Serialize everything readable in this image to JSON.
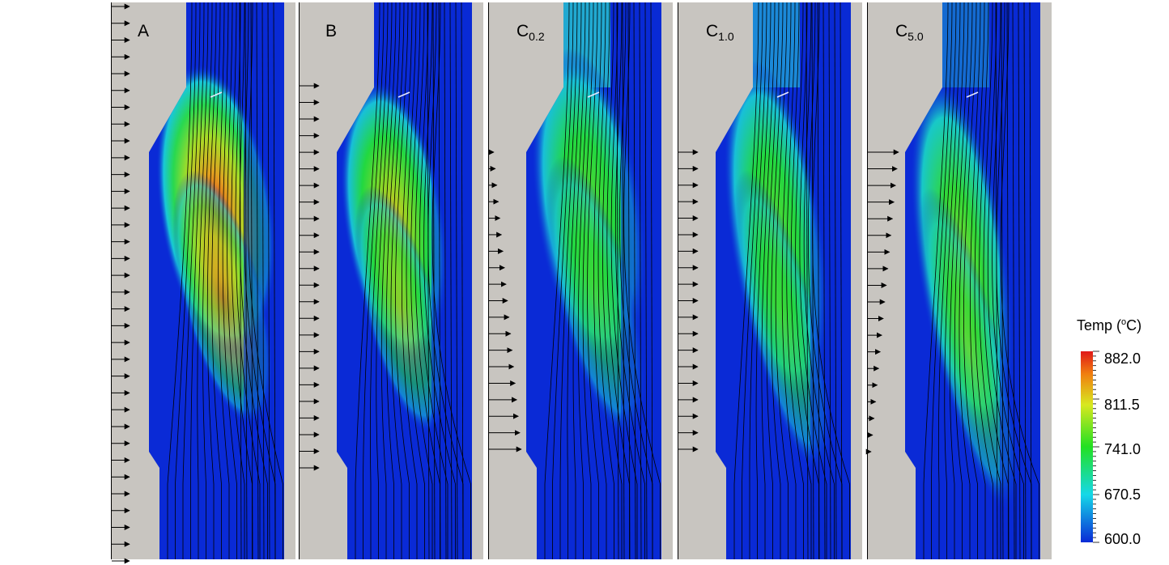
{
  "panels": [
    {
      "name": "A",
      "label": "A",
      "sub": ""
    },
    {
      "name": "B",
      "label": "B",
      "sub": ""
    },
    {
      "name": "C02",
      "label": "C",
      "sub": "0.2"
    },
    {
      "name": "C10",
      "label": "C",
      "sub": "1.0"
    },
    {
      "name": "C50",
      "label": "C",
      "sub": "5.0"
    }
  ],
  "colorbar": {
    "title_prefix": "Temp (",
    "title_sup": "o",
    "title_suffix": "C)",
    "ticks": [
      "882.0",
      "811.5",
      "741.0",
      "670.5",
      "600.0"
    ],
    "min": 600.0,
    "max": 882.0,
    "colors": [
      "#0a2ad6",
      "#15d8e8",
      "#22e022",
      "#e8e820",
      "#f05010",
      "#e01818"
    ]
  },
  "colors": {
    "background_gray": "#c8c5c0",
    "cold_blue": "#0a2ad6",
    "streamline": "#000000"
  }
}
